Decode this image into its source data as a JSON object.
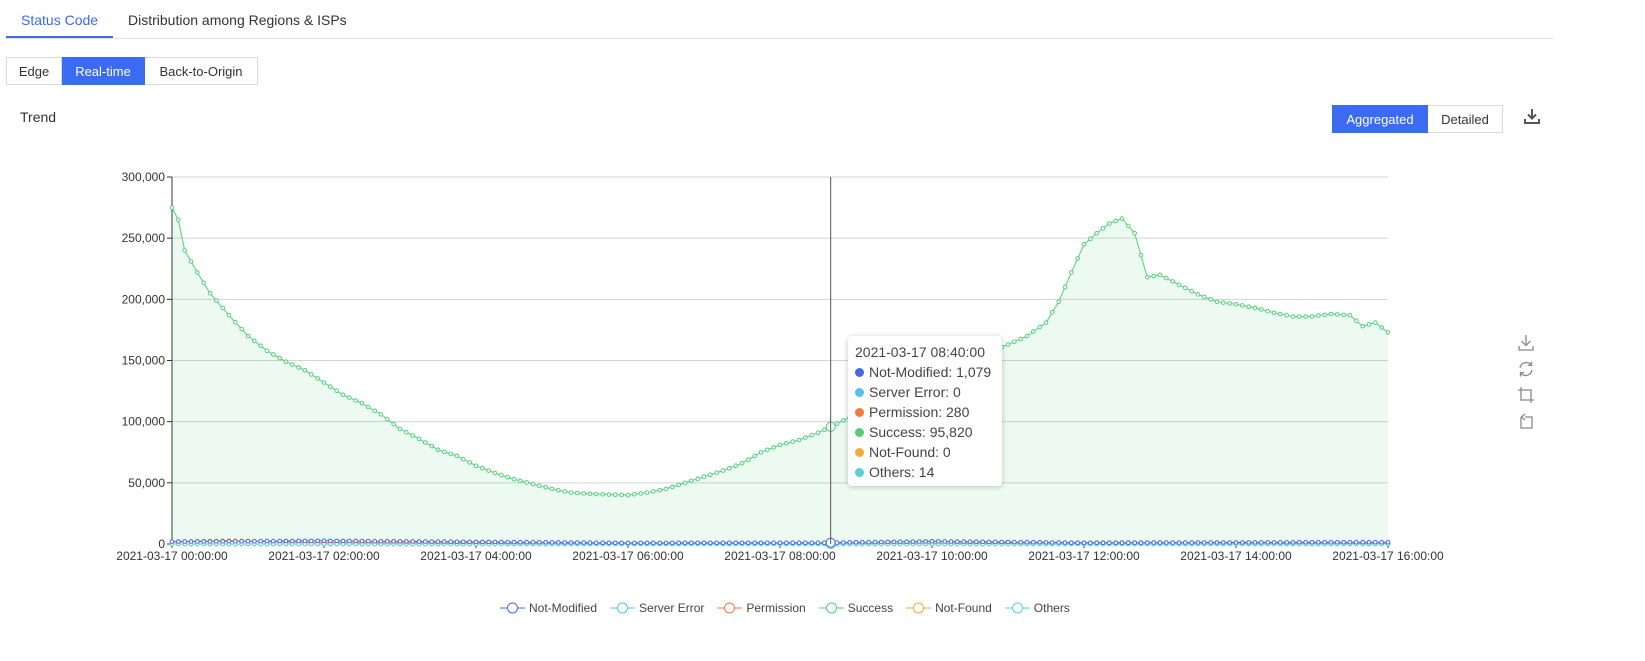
{
  "tabs": [
    {
      "label": "Status Code",
      "active": true
    },
    {
      "label": "Distribution among Regions & ISPs",
      "active": false
    }
  ],
  "source_buttons": [
    {
      "label": "Edge",
      "active": false
    },
    {
      "label": "Real-time",
      "active": true
    },
    {
      "label": "Back-to-Origin",
      "active": false
    }
  ],
  "section_title": "Trend",
  "view_buttons": [
    {
      "label": "Aggregated",
      "active": true
    },
    {
      "label": "Detailed",
      "active": false
    }
  ],
  "icons": {
    "export": "download-icon",
    "toolbox": [
      "save-image-icon",
      "restore-icon",
      "zoom-icon",
      "zoom-back-icon"
    ]
  },
  "colors": {
    "accent": "#3a6bf0",
    "Not-Modified": "#4469e6",
    "Server Error": "#55c0f0",
    "Permission": "#f27b42",
    "Success": "#52cf7a",
    "Not-Found": "#f6a93b",
    "Others": "#56cfd6"
  },
  "tooltip": {
    "time": "2021-03-17 08:40:00",
    "rows": [
      {
        "label": "Not-Modified: 1,079",
        "color": "#4469e6"
      },
      {
        "label": "Server Error: 0",
        "color": "#55c0f0"
      },
      {
        "label": "Permission: 280",
        "color": "#f27b42"
      },
      {
        "label": "Success: 95,820",
        "color": "#52cf7a"
      },
      {
        "label": "Not-Found: 0",
        "color": "#f6a93b"
      },
      {
        "label": "Others: 14",
        "color": "#56cfd6"
      }
    ]
  },
  "chart_data": {
    "type": "area",
    "title": "",
    "xlabel": "",
    "ylabel": "",
    "ylim": [
      0,
      300000
    ],
    "y_ticks": [
      {
        "value": 0,
        "label": "0"
      },
      {
        "value": 50000,
        "label": "50,000"
      },
      {
        "value": 100000,
        "label": "100,000"
      },
      {
        "value": 150000,
        "label": "150,000"
      },
      {
        "value": 200000,
        "label": "200,000"
      },
      {
        "value": 250000,
        "label": "250,000"
      },
      {
        "value": 300000,
        "label": "300,000"
      }
    ],
    "x_range": [
      "2021-03-17 00:00:00",
      "2021-03-17 16:00:00"
    ],
    "x_tick_labels": [
      "2021-03-17 00:00:00",
      "2021-03-17 02:00:00",
      "2021-03-17 04:00:00",
      "2021-03-17 06:00:00",
      "2021-03-17 08:00:00",
      "2021-03-17 10:00:00",
      "2021-03-17 12:00:00",
      "2021-03-17 14:00:00",
      "2021-03-17 16:00:00"
    ],
    "interval_minutes": 5,
    "highlight_x": "2021-03-17 08:40:00",
    "grid": true,
    "legend_position": "bottom-center",
    "series": [
      {
        "name": "Not-Modified",
        "values": [
          {
            "time": "2021-03-17 00:00:00",
            "value": 2000
          },
          {
            "time": "2021-03-17 02:00:00",
            "value": 2600
          },
          {
            "time": "2021-03-17 06:00:00",
            "value": 900
          },
          {
            "time": "2021-03-17 08:40:00",
            "value": 1079
          },
          {
            "time": "2021-03-17 10:00:00",
            "value": 2200
          },
          {
            "time": "2021-03-17 12:00:00",
            "value": 1000
          },
          {
            "time": "2021-03-17 16:00:00",
            "value": 1500
          }
        ]
      },
      {
        "name": "Server Error",
        "values": [
          {
            "time": "2021-03-17 00:00:00",
            "value": 0
          },
          {
            "time": "2021-03-17 16:00:00",
            "value": 0
          }
        ]
      },
      {
        "name": "Permission",
        "values": [
          {
            "time": "2021-03-17 00:00:00",
            "value": 1800
          },
          {
            "time": "2021-03-17 00:45:00",
            "value": 2600
          },
          {
            "time": "2021-03-17 02:00:00",
            "value": 1000
          },
          {
            "time": "2021-03-17 08:40:00",
            "value": 280
          },
          {
            "time": "2021-03-17 12:30:00",
            "value": 1200
          },
          {
            "time": "2021-03-17 16:00:00",
            "value": 600
          }
        ]
      },
      {
        "name": "Success",
        "values": [
          {
            "time": "2021-03-17 00:00:00",
            "value": 275000
          },
          {
            "time": "2021-03-17 00:05:00",
            "value": 265000
          },
          {
            "time": "2021-03-17 00:10:00",
            "value": 240000
          },
          {
            "time": "2021-03-17 00:20:00",
            "value": 222000
          },
          {
            "time": "2021-03-17 00:30:00",
            "value": 205000
          },
          {
            "time": "2021-03-17 00:45:00",
            "value": 187000
          },
          {
            "time": "2021-03-17 01:00:00",
            "value": 170000
          },
          {
            "time": "2021-03-17 01:15:00",
            "value": 158000
          },
          {
            "time": "2021-03-17 01:30:00",
            "value": 149000
          },
          {
            "time": "2021-03-17 01:45:00",
            "value": 142000
          },
          {
            "time": "2021-03-17 02:00:00",
            "value": 132000
          },
          {
            "time": "2021-03-17 02:15:00",
            "value": 122000
          },
          {
            "time": "2021-03-17 02:30:00",
            "value": 115000
          },
          {
            "time": "2021-03-17 02:45:00",
            "value": 106000
          },
          {
            "time": "2021-03-17 03:00:00",
            "value": 94000
          },
          {
            "time": "2021-03-17 03:15:00",
            "value": 86000
          },
          {
            "time": "2021-03-17 03:30:00",
            "value": 77000
          },
          {
            "time": "2021-03-17 03:45:00",
            "value": 72000
          },
          {
            "time": "2021-03-17 04:00:00",
            "value": 64000
          },
          {
            "time": "2021-03-17 04:15:00",
            "value": 58000
          },
          {
            "time": "2021-03-17 04:30:00",
            "value": 53000
          },
          {
            "time": "2021-03-17 04:45:00",
            "value": 49000
          },
          {
            "time": "2021-03-17 05:00:00",
            "value": 45000
          },
          {
            "time": "2021-03-17 05:15:00",
            "value": 42000
          },
          {
            "time": "2021-03-17 05:30:00",
            "value": 41000
          },
          {
            "time": "2021-03-17 05:45:00",
            "value": 40500
          },
          {
            "time": "2021-03-17 06:00:00",
            "value": 40000
          },
          {
            "time": "2021-03-17 06:15:00",
            "value": 42000
          },
          {
            "time": "2021-03-17 06:30:00",
            "value": 45000
          },
          {
            "time": "2021-03-17 06:45:00",
            "value": 50000
          },
          {
            "time": "2021-03-17 07:00:00",
            "value": 55000
          },
          {
            "time": "2021-03-17 07:15:00",
            "value": 60000
          },
          {
            "time": "2021-03-17 07:30:00",
            "value": 66000
          },
          {
            "time": "2021-03-17 07:45:00",
            "value": 75000
          },
          {
            "time": "2021-03-17 08:00:00",
            "value": 81000
          },
          {
            "time": "2021-03-17 08:15:00",
            "value": 85000
          },
          {
            "time": "2021-03-17 08:30:00",
            "value": 91000
          },
          {
            "time": "2021-03-17 08:40:00",
            "value": 95820
          },
          {
            "time": "2021-03-17 08:50:00",
            "value": 101000
          },
          {
            "time": "2021-03-17 09:00:00",
            "value": 106000
          },
          {
            "time": "2021-03-17 10:00:00",
            "value": 140000
          },
          {
            "time": "2021-03-17 10:30:00",
            "value": 151000
          },
          {
            "time": "2021-03-17 10:45:00",
            "value": 157000
          },
          {
            "time": "2021-03-17 11:00:00",
            "value": 163000
          },
          {
            "time": "2021-03-17 11:15:00",
            "value": 170000
          },
          {
            "time": "2021-03-17 11:30:00",
            "value": 181000
          },
          {
            "time": "2021-03-17 11:40:00",
            "value": 198000
          },
          {
            "time": "2021-03-17 11:50:00",
            "value": 222000
          },
          {
            "time": "2021-03-17 12:00:00",
            "value": 245000
          },
          {
            "time": "2021-03-17 12:10:00",
            "value": 254000
          },
          {
            "time": "2021-03-17 12:20:00",
            "value": 262000
          },
          {
            "time": "2021-03-17 12:30:00",
            "value": 266000
          },
          {
            "time": "2021-03-17 12:40:00",
            "value": 254000
          },
          {
            "time": "2021-03-17 12:50:00",
            "value": 218000
          },
          {
            "time": "2021-03-17 13:00:00",
            "value": 220000
          },
          {
            "time": "2021-03-17 13:15:00",
            "value": 212000
          },
          {
            "time": "2021-03-17 13:30:00",
            "value": 204000
          },
          {
            "time": "2021-03-17 13:45:00",
            "value": 198000
          },
          {
            "time": "2021-03-17 14:00:00",
            "value": 196000
          },
          {
            "time": "2021-03-17 14:15:00",
            "value": 193000
          },
          {
            "time": "2021-03-17 14:30:00",
            "value": 189000
          },
          {
            "time": "2021-03-17 14:45:00",
            "value": 186000
          },
          {
            "time": "2021-03-17 15:00:00",
            "value": 186000
          },
          {
            "time": "2021-03-17 15:15:00",
            "value": 188000
          },
          {
            "time": "2021-03-17 15:30:00",
            "value": 187000
          },
          {
            "time": "2021-03-17 15:40:00",
            "value": 178000
          },
          {
            "time": "2021-03-17 15:50:00",
            "value": 181000
          },
          {
            "time": "2021-03-17 16:00:00",
            "value": 173000
          }
        ]
      },
      {
        "name": "Not-Found",
        "values": [
          {
            "time": "2021-03-17 00:00:00",
            "value": 0
          },
          {
            "time": "2021-03-17 16:00:00",
            "value": 0
          }
        ]
      },
      {
        "name": "Others",
        "values": [
          {
            "time": "2021-03-17 00:00:00",
            "value": 20
          },
          {
            "time": "2021-03-17 08:40:00",
            "value": 14
          },
          {
            "time": "2021-03-17 16:00:00",
            "value": 20
          }
        ]
      }
    ]
  }
}
